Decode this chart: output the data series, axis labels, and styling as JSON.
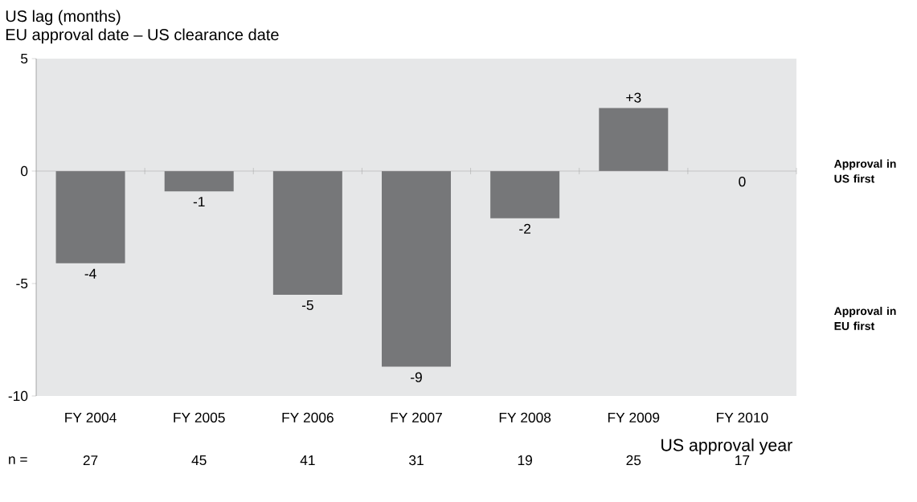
{
  "chart_data": {
    "type": "bar",
    "title": "US lag (months)",
    "subtitle": "EU approval date – US clearance date",
    "xlabel": "US approval year",
    "categories": [
      "FY 2004",
      "FY 2005",
      "FY 2006",
      "FY 2007",
      "FY 2008",
      "FY 2009",
      "FY 2010"
    ],
    "values": [
      -4.1,
      -0.9,
      -5.5,
      -8.7,
      -2.1,
      2.8,
      0
    ],
    "value_labels": [
      "-4",
      "-1",
      "-5",
      "-9",
      "-2",
      "+3",
      "0"
    ],
    "color": "#767779",
    "ylim": [
      -10,
      5
    ],
    "yticks": [
      -10,
      -5,
      0,
      5
    ],
    "ref_lines": [
      {
        "axis": "y",
        "value": 0,
        "color": "#a6a6a6"
      }
    ],
    "annotations": [
      "Approval in US first",
      "Approval in EU first",
      "n =",
      "27",
      "45",
      "41",
      "31",
      "19",
      "25",
      "17"
    ]
  }
}
